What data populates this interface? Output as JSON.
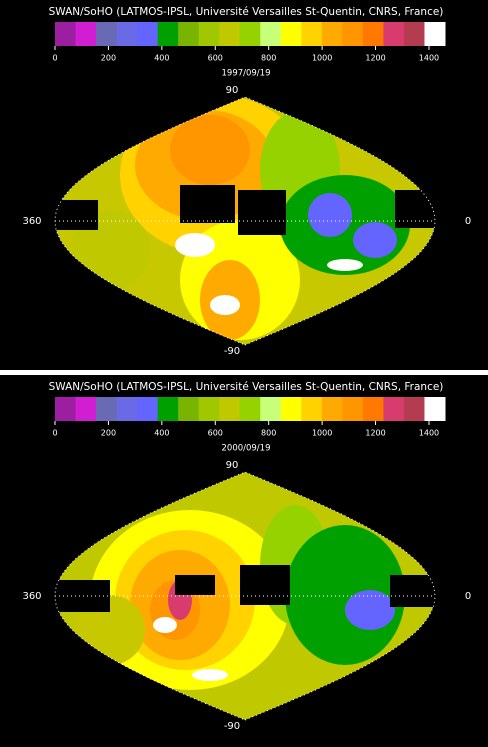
{
  "panels": [
    {
      "credit": "SWAN/SoHO (LATMOS-IPSL, Université Versailles St-Quentin, CNRS, France)",
      "colorbar": {
        "lim": [
          0,
          1460
        ],
        "ticks": [
          0,
          200,
          400,
          600,
          800,
          1000,
          1200,
          1400
        ],
        "colors": [
          "#9b1fa0",
          "#d21ed2",
          "#6a6ab4",
          "#6a6ae6",
          "#6464ff",
          "#00a000",
          "#78b400",
          "#a0c800",
          "#c0c800",
          "#96d200",
          "#c8ff78",
          "#ffff00",
          "#ffd200",
          "#ffaa00",
          "#ff9600",
          "#ff7800",
          "#d83c6e",
          "#b43c50",
          "#ffffff"
        ]
      },
      "date": "1997/09/19",
      "lat_top": "90",
      "lat_bottom": "-90",
      "lon_left": "360",
      "lon_right": "0"
    },
    {
      "credit": "SWAN/SoHO (LATMOS-IPSL, Université Versailles St-Quentin, CNRS, France)",
      "colorbar": {
        "lim": [
          0,
          1460
        ],
        "ticks": [
          0,
          200,
          400,
          600,
          800,
          1000,
          1200,
          1400
        ],
        "colors": [
          "#9b1fa0",
          "#d21ed2",
          "#6a6ab4",
          "#6a6ae6",
          "#6464ff",
          "#00a000",
          "#78b400",
          "#a0c800",
          "#c0c800",
          "#96d200",
          "#c8ff78",
          "#ffff00",
          "#ffd200",
          "#ffaa00",
          "#ff9600",
          "#ff7800",
          "#d83c6e",
          "#b43c50",
          "#ffffff"
        ]
      },
      "date": "2000/09/19",
      "lat_top": "90",
      "lat_bottom": "-90",
      "lon_left": "360",
      "lon_right": "0"
    }
  ]
}
